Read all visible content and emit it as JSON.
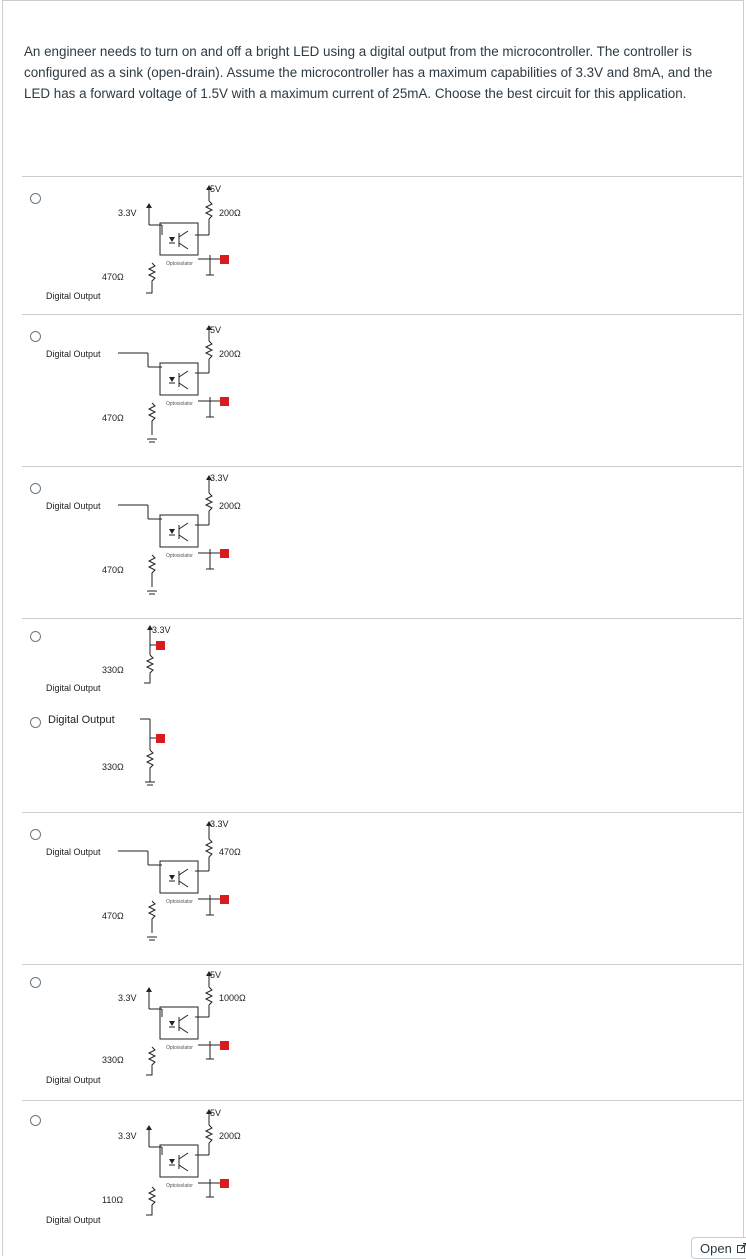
{
  "question": {
    "text": "An engineer needs to turn on and off a bright LED using a digital output from the microcontroller. The controller is configured as a sink (open-drain). Assume the microcontroller has a maximum capabilities of 3.3V and 8mA, and the LED has a forward voltage of 1.5V with a maximum current of 25mA. Choose the best circuit for this application."
  },
  "options": [
    {
      "supply_left": "3.3V",
      "supply_right": "5V",
      "r_top": "200Ω",
      "r_bottom": "470Ω",
      "output": "Digital Output",
      "chip": "Optoisolator"
    },
    {
      "supply_right": "5V",
      "r_top": "200Ω",
      "r_bottom": "470Ω",
      "output": "Digital Output",
      "chip": "Optoisolator"
    },
    {
      "supply_right": "3.3V",
      "r_top": "200Ω",
      "r_bottom": "470Ω",
      "output": "Digital Output",
      "chip": "Optoisolator"
    },
    {
      "supply": "3.3V",
      "resistor": "330Ω",
      "output": "Digital Output"
    },
    {
      "resistor": "330Ω",
      "output": "Digital Output"
    },
    {
      "supply_right": "3.3V",
      "r_top": "470Ω",
      "r_bottom": "470Ω",
      "output": "Digital Output",
      "chip": "Optoisolator"
    },
    {
      "supply_left": "3.3V",
      "supply_right": "5V",
      "r_top": "1000Ω",
      "r_bottom": "330Ω",
      "output": "Digital Output",
      "chip": "Optoisolator"
    },
    {
      "supply_left": "3.3V",
      "supply_right": "5V",
      "r_top": "200Ω",
      "r_bottom": "110Ω",
      "output": "Digital Output",
      "chip": "Optoisolator"
    }
  ],
  "footer": {
    "open_label": "Open"
  },
  "colors": {
    "led": "#d81b1b",
    "text": "#2d3b45",
    "border": "#c7cdd1"
  }
}
